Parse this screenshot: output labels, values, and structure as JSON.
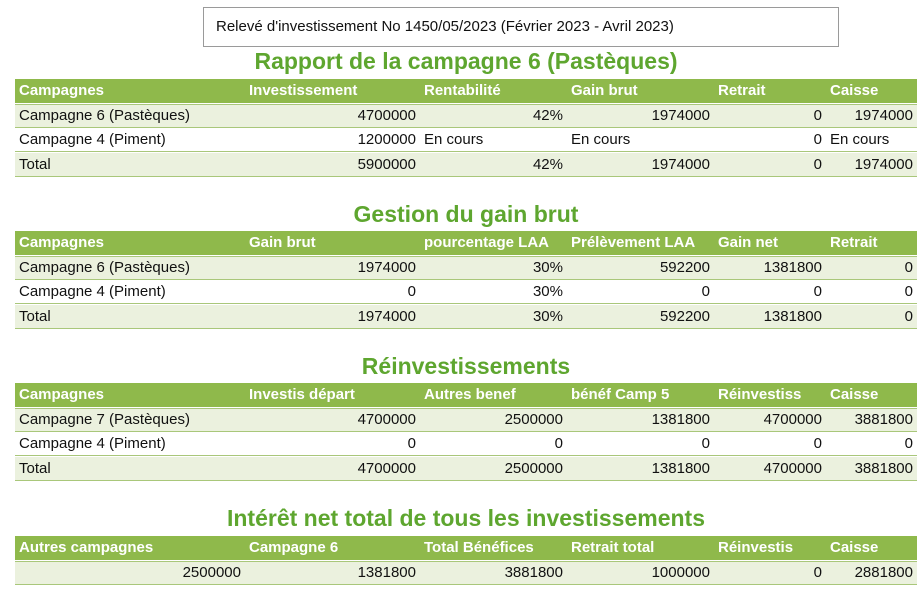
{
  "header": {
    "title": "Relevé d'investissement No 1450/05/2023  (Février 2023 - Avril 2023)"
  },
  "sections": [
    {
      "title": "Rapport de la campagne 6 (Pastèques)",
      "headers": [
        "Campagnes",
        "Investissement",
        "Rentabilité",
        "Gain brut",
        "Retrait",
        "Caisse"
      ],
      "rows": [
        [
          "Campagne 6 (Pastèques)",
          "4700000",
          "42%",
          "1974000",
          "0",
          "1974000"
        ],
        [
          "Campagne 4 (Piment)",
          "1200000",
          "En cours",
          "En cours",
          "0",
          "En cours"
        ],
        [
          "Total",
          "5900000",
          "42%",
          "1974000",
          "0",
          "1974000"
        ]
      ]
    },
    {
      "title": "Gestion du gain brut",
      "headers": [
        "Campagnes",
        "Gain brut",
        "pourcentage LAA",
        "Prélèvement LAA",
        "Gain net",
        "Retrait"
      ],
      "rows": [
        [
          "Campagne 6 (Pastèques)",
          "1974000",
          "30%",
          "592200",
          "1381800",
          "0"
        ],
        [
          "Campagne 4 (Piment)",
          "0",
          "30%",
          "0",
          "0",
          "0"
        ],
        [
          "Total",
          "1974000",
          "30%",
          "592200",
          "1381800",
          "0"
        ]
      ]
    },
    {
      "title": "Réinvestissements",
      "headers": [
        "Campagnes",
        "Investis départ",
        "Autres benef",
        "bénéf Camp 5",
        "Réinvestiss",
        "Caisse"
      ],
      "rows": [
        [
          "Campagne 7 (Pastèques)",
          "4700000",
          "2500000",
          "1381800",
          "4700000",
          "3881800"
        ],
        [
          "Campagne 4 (Piment)",
          "0",
          "0",
          "0",
          "0",
          "0"
        ],
        [
          "Total",
          "4700000",
          "2500000",
          "1381800",
          "4700000",
          "3881800"
        ]
      ]
    },
    {
      "title": "Intérêt net total de tous les investissements",
      "headers": [
        "Autres campagnes",
        "Campagne 6",
        "Total Bénéfices",
        "Retrait total",
        "Réinvestis",
        "Caisse"
      ],
      "rows": [
        [
          "2500000",
          "1381800",
          "3881800",
          "1000000",
          "0",
          "2881800"
        ]
      ]
    }
  ]
}
